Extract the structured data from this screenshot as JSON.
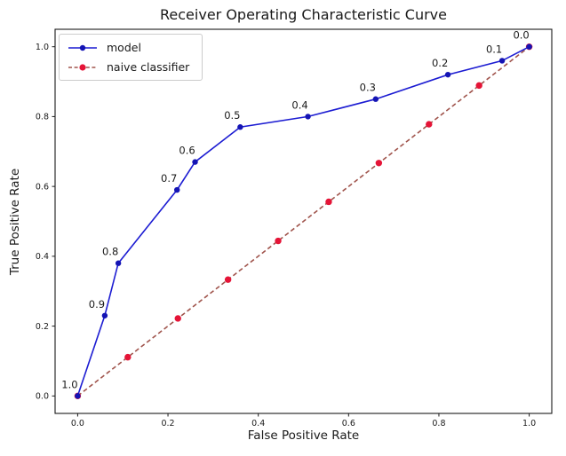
{
  "chart_data": {
    "type": "line",
    "title": "Receiver Operating Characteristic Curve",
    "xlabel": "False Positive Rate",
    "ylabel": "True Positive Rate",
    "xlim": [
      -0.05,
      1.05
    ],
    "ylim": [
      -0.05,
      1.05
    ],
    "xticks": [
      "0.0",
      "0.2",
      "0.4",
      "0.6",
      "0.8",
      "1.0"
    ],
    "yticks": [
      "0.0",
      "0.2",
      "0.4",
      "0.6",
      "0.8",
      "1.0"
    ],
    "grid": false,
    "legend_position": "upper left",
    "colors": {
      "text": "#1a1a1a",
      "spine": "#1a1a1a",
      "background": "#ffffff"
    },
    "series": [
      {
        "name": "model",
        "line_style": "solid",
        "marker": "circle",
        "line_color": "#1c1cd2",
        "marker_color": "#1414b4",
        "points": [
          {
            "x": 0.0,
            "y": 0.0,
            "label": "1.0"
          },
          {
            "x": 0.06,
            "y": 0.23,
            "label": "0.9"
          },
          {
            "x": 0.09,
            "y": 0.38,
            "label": "0.8"
          },
          {
            "x": 0.22,
            "y": 0.59,
            "label": "0.7"
          },
          {
            "x": 0.26,
            "y": 0.67,
            "label": "0.6"
          },
          {
            "x": 0.36,
            "y": 0.77,
            "label": "0.5"
          },
          {
            "x": 0.51,
            "y": 0.8,
            "label": "0.4"
          },
          {
            "x": 0.66,
            "y": 0.85,
            "label": "0.3"
          },
          {
            "x": 0.82,
            "y": 0.92,
            "label": "0.2"
          },
          {
            "x": 0.94,
            "y": 0.96,
            "label": "0.1"
          },
          {
            "x": 1.0,
            "y": 1.0,
            "label": "0.0"
          }
        ]
      },
      {
        "name": "naive classifier",
        "line_style": "dashed",
        "marker": "circle",
        "line_color": "#a0544c",
        "marker_color": "#e51437",
        "points": [
          {
            "x": 0.0,
            "y": 0.0
          },
          {
            "x": 0.111,
            "y": 0.111
          },
          {
            "x": 0.222,
            "y": 0.222
          },
          {
            "x": 0.333,
            "y": 0.333
          },
          {
            "x": 0.444,
            "y": 0.444
          },
          {
            "x": 0.556,
            "y": 0.556
          },
          {
            "x": 0.667,
            "y": 0.667
          },
          {
            "x": 0.778,
            "y": 0.778
          },
          {
            "x": 0.889,
            "y": 0.889
          },
          {
            "x": 1.0,
            "y": 1.0
          }
        ]
      }
    ]
  }
}
